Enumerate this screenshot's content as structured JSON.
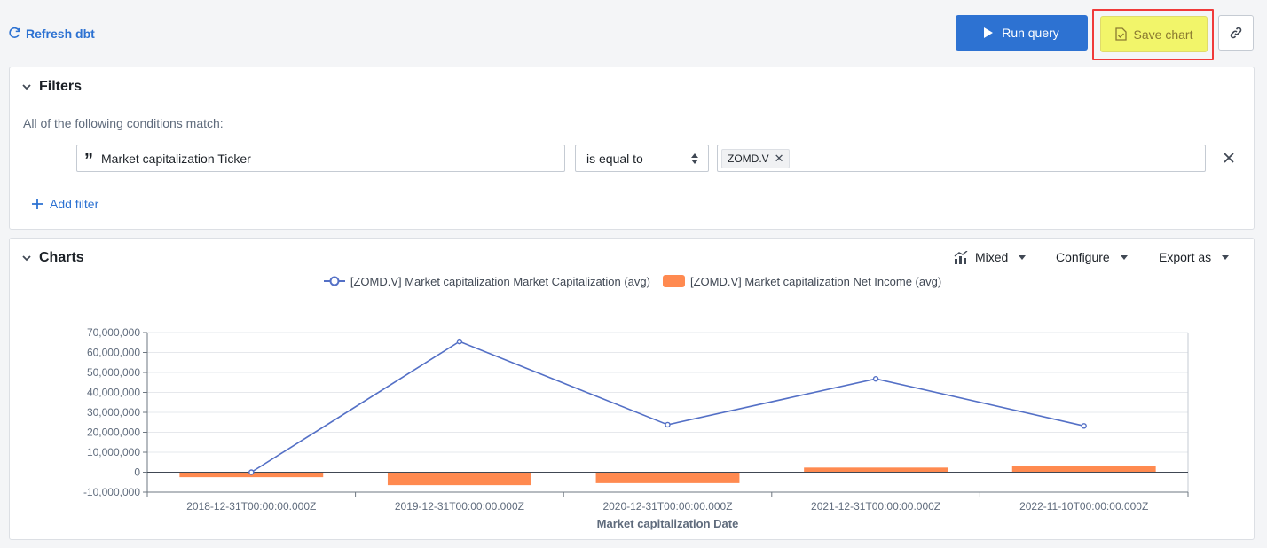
{
  "toolbar": {
    "refresh_label": "Refresh dbt",
    "run_label": "Run query",
    "save_label": "Save chart"
  },
  "filters": {
    "title": "Filters",
    "condition_label": "All of the following conditions match:",
    "rule": {
      "field": "Market capitalization Ticker",
      "operator": "is equal to",
      "value_tag": "ZOMD.V"
    },
    "add_label": "Add filter"
  },
  "charts": {
    "title": "Charts",
    "menu": {
      "type_label": "Mixed",
      "configure_label": "Configure",
      "export_label": "Export as"
    }
  },
  "colors": {
    "primary": "#2d72d2",
    "line_series": "#5470c6",
    "bar_series": "#ff8a50",
    "highlight": "#f2f56a",
    "highlight_border": "#f03a3a"
  },
  "chart_data": {
    "type": "bar",
    "xlabel": "Market capitalization Date",
    "ylabel": "",
    "ylim": [
      -10000000,
      70000000
    ],
    "y_ticks": [
      -10000000,
      0,
      10000000,
      20000000,
      30000000,
      40000000,
      50000000,
      60000000,
      70000000
    ],
    "y_tick_labels": [
      "-10,000,000",
      "0",
      "10,000,000",
      "20,000,000",
      "30,000,000",
      "40,000,000",
      "50,000,000",
      "60,000,000",
      "70,000,000"
    ],
    "categories": [
      "2018-12-31T00:00:00.000Z",
      "2019-12-31T00:00:00.000Z",
      "2020-12-31T00:00:00.000Z",
      "2021-12-31T00:00:00.000Z",
      "2022-11-10T00:00:00.000Z"
    ],
    "grid": true,
    "legend_position": "top-center",
    "series": [
      {
        "name": "[ZOMD.V] Market capitalization Market Capitalization (avg)",
        "type": "line",
        "values": [
          0,
          65500000,
          23800000,
          46800000,
          23200000
        ]
      },
      {
        "name": "[ZOMD.V] Market capitalization Net Income (avg)",
        "type": "bar",
        "values": [
          -2500000,
          -6500000,
          -5500000,
          2300000,
          3300000
        ]
      }
    ]
  }
}
